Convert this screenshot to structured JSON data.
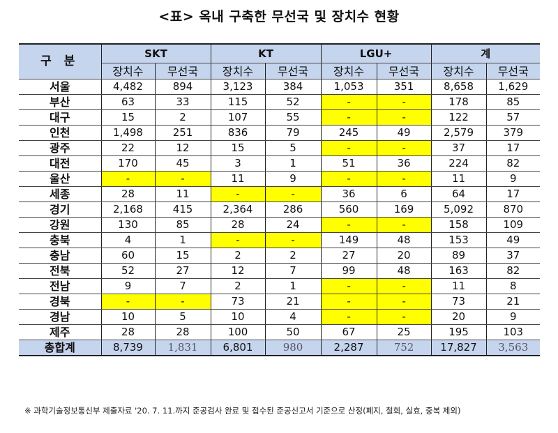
{
  "title": "<표> 옥내 구축한 무선국 및 장치수 현황",
  "table": {
    "corner_label": "구 분",
    "groups": [
      "SKT",
      "KT",
      "LGU+",
      "계"
    ],
    "sub_headers": [
      "장치수",
      "무선국",
      "장치수",
      "무선국",
      "장치수",
      "무선국",
      "장치수",
      "무선국"
    ],
    "rows": [
      {
        "region": "서울",
        "values": [
          "4,482",
          "894",
          "3,123",
          "384",
          "1,053",
          "351",
          "8,658",
          "1,629"
        ]
      },
      {
        "region": "부산",
        "values": [
          "63",
          "33",
          "115",
          "52",
          "-",
          "-",
          "178",
          "85"
        ]
      },
      {
        "region": "대구",
        "values": [
          "15",
          "2",
          "107",
          "55",
          "-",
          "-",
          "122",
          "57"
        ]
      },
      {
        "region": "인천",
        "values": [
          "1,498",
          "251",
          "836",
          "79",
          "245",
          "49",
          "2,579",
          "379"
        ]
      },
      {
        "region": "광주",
        "values": [
          "22",
          "12",
          "15",
          "5",
          "-",
          "-",
          "37",
          "17"
        ]
      },
      {
        "region": "대전",
        "values": [
          "170",
          "45",
          "3",
          "1",
          "51",
          "36",
          "224",
          "82"
        ]
      },
      {
        "region": "울산",
        "values": [
          "-",
          "-",
          "11",
          "9",
          "-",
          "-",
          "11",
          "9"
        ]
      },
      {
        "region": "세종",
        "values": [
          "28",
          "11",
          "-",
          "-",
          "36",
          "6",
          "64",
          "17"
        ]
      },
      {
        "region": "경기",
        "values": [
          "2,168",
          "415",
          "2,364",
          "286",
          "560",
          "169",
          "5,092",
          "870"
        ]
      },
      {
        "region": "강원",
        "values": [
          "130",
          "85",
          "28",
          "24",
          "-",
          "-",
          "158",
          "109"
        ]
      },
      {
        "region": "충북",
        "values": [
          "4",
          "1",
          "-",
          "-",
          "149",
          "48",
          "153",
          "49"
        ]
      },
      {
        "region": "충남",
        "values": [
          "60",
          "15",
          "2",
          "2",
          "27",
          "20",
          "89",
          "37"
        ]
      },
      {
        "region": "전북",
        "values": [
          "52",
          "27",
          "12",
          "7",
          "99",
          "48",
          "163",
          "82"
        ]
      },
      {
        "region": "전남",
        "values": [
          "9",
          "7",
          "2",
          "1",
          "-",
          "-",
          "11",
          "8"
        ]
      },
      {
        "region": "경북",
        "values": [
          "-",
          "-",
          "73",
          "21",
          "-",
          "-",
          "73",
          "21"
        ]
      },
      {
        "region": "경남",
        "values": [
          "10",
          "5",
          "10",
          "4",
          "-",
          "-",
          "20",
          "9"
        ]
      },
      {
        "region": "제주",
        "values": [
          "28",
          "28",
          "100",
          "50",
          "67",
          "25",
          "195",
          "103"
        ]
      }
    ],
    "total": {
      "region": "총합계",
      "values": [
        "8,739",
        "1,831",
        "6,801",
        "980",
        "2,287",
        "752",
        "17,827",
        "3,563"
      ]
    }
  },
  "colors": {
    "header_bg": "#c6d5ee",
    "missing_highlight": "#ffff00"
  },
  "footnote": "※ 과학기술정보통신부 제출자료 '20. 7. 11.까지 준공검사 완료 및 접수된 준공신고서 기준으로 산정(폐지, 철회, 실효, 중복 제외)"
}
